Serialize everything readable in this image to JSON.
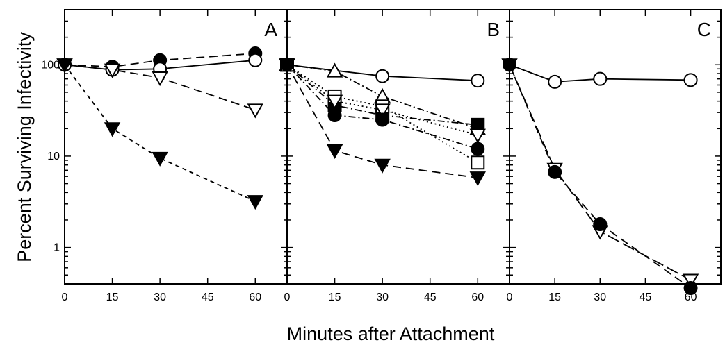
{
  "chart_data": {
    "type": "scatter",
    "ylabel": "Percent Surviving Infectivity",
    "xlabel": "Minutes after Attachment",
    "yscale": "log",
    "ylim": [
      0.4,
      400
    ],
    "xlim": [
      0,
      70
    ],
    "y_tick_labels": [
      "100",
      "10",
      "1"
    ],
    "y_tick_values": [
      100,
      10,
      1
    ],
    "x_tick_labels": [
      "0",
      "15",
      "30",
      "45",
      "60"
    ],
    "x_tick_values": [
      0,
      15,
      30,
      45,
      60
    ],
    "panels": [
      {
        "label": "A",
        "series": [
          {
            "marker": "circle",
            "filled": true,
            "line": "dash",
            "x": [
              0,
              15,
              30,
              60
            ],
            "y": [
              100,
              95,
              112,
              133
            ]
          },
          {
            "marker": "circle",
            "filled": false,
            "line": "solid",
            "x": [
              0,
              15,
              30,
              60
            ],
            "y": [
              100,
              88,
              90,
              112
            ]
          },
          {
            "marker": "triangle-down",
            "filled": false,
            "line": "dash",
            "x": [
              0,
              15,
              30,
              60
            ],
            "y": [
              100,
              88,
              72,
              32
            ]
          },
          {
            "marker": "triangle-down",
            "filled": true,
            "line": "shortdash",
            "x": [
              0,
              15,
              30,
              60
            ],
            "y": [
              100,
              20,
              9.5,
              3.2
            ]
          }
        ]
      },
      {
        "label": "B",
        "series": [
          {
            "marker": "circle",
            "filled": false,
            "line": "solid",
            "x": [
              0,
              30,
              60
            ],
            "y": [
              100,
              75,
              67
            ]
          },
          {
            "marker": "triangle-up",
            "filled": false,
            "line": "dashdot",
            "x": [
              0,
              15,
              30,
              60
            ],
            "y": [
              100,
              85,
              45,
              20
            ]
          },
          {
            "marker": "square",
            "filled": true,
            "line": "dashdot",
            "x": [
              0,
              15,
              30,
              60
            ],
            "y": [
              100,
              36,
              28,
              22
            ]
          },
          {
            "marker": "square",
            "filled": false,
            "line": "dot",
            "x": [
              0,
              15,
              30,
              60
            ],
            "y": [
              100,
              45,
              35,
              8.5
            ]
          },
          {
            "marker": "triangle-down",
            "filled": false,
            "line": "dot",
            "x": [
              0,
              15,
              30,
              60
            ],
            "y": [
              100,
              40,
              32,
              17
            ]
          },
          {
            "marker": "circle",
            "filled": true,
            "line": "dashdot",
            "x": [
              0,
              15,
              30,
              60
            ],
            "y": [
              100,
              28,
              25,
              12
            ]
          },
          {
            "marker": "triangle-down",
            "filled": true,
            "line": "dash",
            "x": [
              0,
              15,
              30,
              60
            ],
            "y": [
              100,
              11.5,
              8,
              5.8
            ]
          }
        ]
      },
      {
        "label": "C",
        "series": [
          {
            "marker": "circle",
            "filled": false,
            "line": "solid",
            "x": [
              0,
              15,
              30,
              60
            ],
            "y": [
              100,
              65,
              70,
              68
            ]
          },
          {
            "marker": "triangle-down",
            "filled": false,
            "line": "longdash",
            "x": [
              0,
              15,
              30,
              60
            ],
            "y": [
              100,
              7.2,
              1.5,
              0.44
            ]
          },
          {
            "marker": "circle",
            "filled": true,
            "line": "dash",
            "x": [
              0,
              15,
              30,
              60
            ],
            "y": [
              100,
              6.7,
              1.8,
              0.36
            ]
          }
        ]
      }
    ]
  }
}
